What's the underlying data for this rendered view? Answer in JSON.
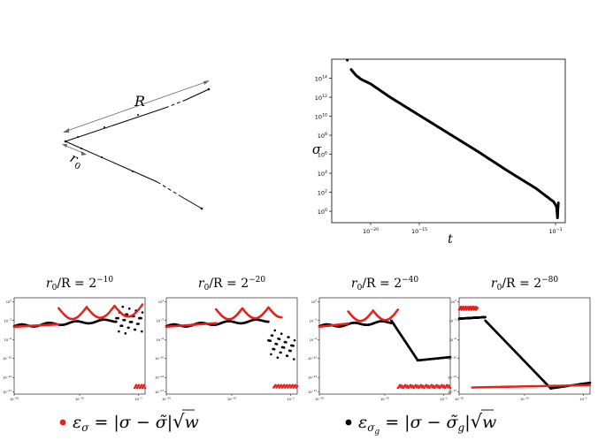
{
  "diagram": {
    "R_label": "R",
    "r0_label": "r",
    "r0_sub": "0"
  },
  "chart_data": [
    {
      "type": "scatter",
      "xlabel": "t",
      "ylabel": "σ",
      "xscale": "log",
      "yscale": "log",
      "x_ticks": [
        "10",
        "10",
        "10"
      ],
      "x_tick_exp": [
        "−20",
        "−15",
        "−1"
      ],
      "y_ticks": [
        "10",
        "10",
        "10",
        "10",
        "10",
        "10",
        "10",
        "10"
      ],
      "y_tick_exp": [
        "14",
        "12",
        "10",
        "8",
        "6",
        "4",
        "2",
        "0"
      ],
      "series": [
        {
          "values": [
            [
              -22.0,
              14.9
            ],
            [
              -21.5,
              14.3
            ],
            [
              -21.0,
              13.9
            ],
            [
              -20.0,
              13.4
            ],
            [
              -18.0,
              12.0
            ],
            [
              -15.0,
              10.1
            ],
            [
              -12.0,
              8.2
            ],
            [
              -9.0,
              6.3
            ],
            [
              -6.0,
              4.3
            ],
            [
              -3.0,
              2.4
            ],
            [
              -1.2,
              1.0
            ],
            [
              -0.9,
              0.5
            ],
            [
              -0.85,
              0.0
            ],
            [
              -0.8,
              -0.7
            ],
            [
              -0.75,
              0.4
            ],
            [
              -0.7,
              1.0
            ]
          ]
        }
      ]
    },
    {
      "type": "scatter",
      "title_prefix": "r",
      "title_sub": "0",
      "title_mid": "/R = 2",
      "title_exp": "−10",
      "y_ticks": [
        "10",
        "10",
        "10",
        "10",
        "10",
        "10"
      ],
      "y_tick_exp": [
        "2",
        "−2",
        "−6",
        "−10",
        "−14",
        "−17"
      ],
      "x_ticks": [
        "10",
        "10",
        "10"
      ],
      "x_tick_exp": [
        "−20",
        "−15",
        "−1"
      ]
    },
    {
      "type": "scatter",
      "title_prefix": "r",
      "title_sub": "0",
      "title_mid": "/R = 2",
      "title_exp": "−20",
      "y_ticks": [
        "10",
        "10",
        "10",
        "10",
        "10",
        "10"
      ],
      "y_tick_exp": [
        "2",
        "−2",
        "−6",
        "−10",
        "−14",
        "−17"
      ],
      "x_ticks": [
        "10",
        "10",
        "10"
      ],
      "x_tick_exp": [
        "−20",
        "−15",
        "−1"
      ]
    },
    {
      "type": "scatter",
      "title_prefix": "r",
      "title_sub": "0",
      "title_mid": "/R = 2",
      "title_exp": "−40",
      "y_ticks": [
        "10",
        "10",
        "10",
        "10",
        "10",
        "10"
      ],
      "y_tick_exp": [
        "2",
        "−2",
        "−6",
        "−10",
        "−14",
        "−17"
      ],
      "x_ticks": [
        "10",
        "10",
        "10"
      ],
      "x_tick_exp": [
        "−20",
        "−15",
        "−1"
      ]
    },
    {
      "type": "scatter",
      "title_prefix": "r",
      "title_sub": "0",
      "title_mid": "/R = 2",
      "title_exp": "−80",
      "y_ticks": [
        "10",
        "10",
        "10",
        "10",
        "10",
        "10"
      ],
      "y_tick_exp": [
        "2",
        "−2",
        "−6",
        "−10",
        "−14",
        "−17"
      ],
      "x_ticks": [
        "10",
        "10",
        "10"
      ],
      "x_tick_exp": [
        "−20",
        "−15",
        "−1"
      ]
    }
  ],
  "legend": {
    "red": {
      "eps": "ε",
      "sub": "σ",
      "eq": " = |σ − σ̃|",
      "w": "w",
      "color": "#e8201c"
    },
    "black": {
      "eps": "ε",
      "sub": "σ",
      "subsub": "g",
      "eq": " = |σ − σ̃",
      "eq_sub": "g",
      "eq_end": "|",
      "w": "w",
      "color": "#000000"
    }
  }
}
